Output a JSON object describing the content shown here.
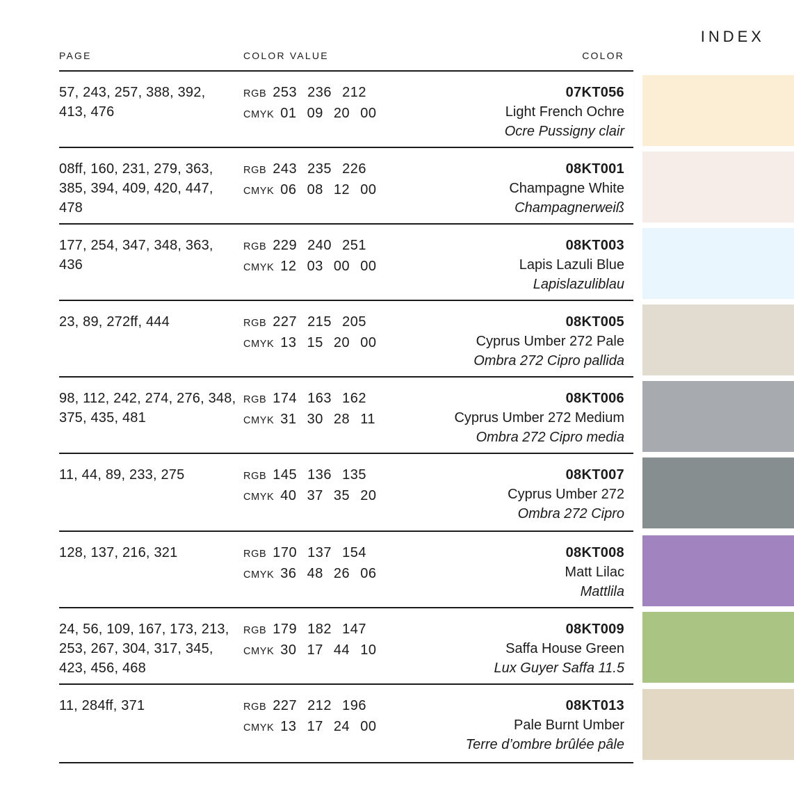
{
  "index_title": "INDEX",
  "columns": {
    "page": "PAGE",
    "value": "COLOR VALUE",
    "color": "COLOR"
  },
  "text_color": "#1b1b1b",
  "rule_color": "#1b1b1b",
  "rows": [
    {
      "pages": "57, 243, 257, 388, 392, 413, 476",
      "rgb_label": "RGB",
      "rgb": "253 236 212",
      "cmyk_label": "CMYK",
      "cmyk": "01 09 20 00",
      "code": "07KT056",
      "name": "Light French Ochre",
      "localized_name": "Ocre Pussigny clair",
      "swatch_color": "#FBEED4"
    },
    {
      "pages": "08ff, 160, 231, 279, 363, 385, 394, 409, 420, 447, 478",
      "rgb_label": "RGB",
      "rgb": "243 235 226",
      "cmyk_label": "CMYK",
      "cmyk": "06 08 12 00",
      "code": "08KT001",
      "name": "Champagne White",
      "localized_name": "Champagnerweiß",
      "swatch_color": "#F6EDE8"
    },
    {
      "pages": "177, 254, 347, 348, 363, 436",
      "rgb_label": "RGB",
      "rgb": "229 240 251",
      "cmyk_label": "CMYK",
      "cmyk": "12 03 00 00",
      "code": "08KT003",
      "name": "Lapis Lazuli Blue",
      "localized_name": "Lapislazuliblau",
      "swatch_color": "#E9F6FE"
    },
    {
      "pages": "23, 89, 272ff, 444",
      "rgb_label": "RGB",
      "rgb": "227 215 205",
      "cmyk_label": "CMYK",
      "cmyk": "13 15 20 00",
      "code": "08KT005",
      "name": "Cyprus Umber 272 Pale",
      "localized_name": "Ombra 272 Cipro pallida",
      "swatch_color": "#E2DCD0"
    },
    {
      "pages": "98, 112, 242, 274, 276, 348, 375, 435, 481",
      "rgb_label": "RGB",
      "rgb": "174 163 162",
      "cmyk_label": "CMYK",
      "cmyk": "31 30 28 11",
      "code": "08KT006",
      "name": "Cyprus Umber 272 Medium",
      "localized_name": "Ombra 272 Cipro media",
      "swatch_color": "#A7AAAF"
    },
    {
      "pages": "11, 44, 89, 233, 275",
      "rgb_label": "RGB",
      "rgb": "145 136 135",
      "cmyk_label": "CMYK",
      "cmyk": "40 37 35 20",
      "code": "08KT007",
      "name": "Cyprus Umber 272",
      "localized_name": "Ombra 272 Cipro",
      "swatch_color": "#868E90"
    },
    {
      "pages": "128, 137, 216, 321",
      "rgb_label": "RGB",
      "rgb": "170 137 154",
      "cmyk_label": "CMYK",
      "cmyk": "36 48 26 06",
      "code": "08KT008",
      "name": "Matt Lilac",
      "localized_name": "Mattlila",
      "swatch_color": "#A183BF"
    },
    {
      "pages": "24, 56, 109, 167, 173, 213, 253, 267, 304, 317, 345, 423, 456, 468",
      "rgb_label": "RGB",
      "rgb": "179 182 147",
      "cmyk_label": "CMYK",
      "cmyk": "30 17 44 10",
      "code": "08KT009",
      "name": "Saffa House Green",
      "localized_name": "Lux Guyer Saffa 11.5",
      "swatch_color": "#A9C483"
    },
    {
      "pages": "11, 284ff, 371",
      "rgb_label": "RGB",
      "rgb": "227 212 196",
      "cmyk_label": "CMYK",
      "cmyk": "13 17 24 00",
      "code": "08KT013",
      "name": "Pale Burnt Umber",
      "localized_name": "Terre d’ombre brûlée pâle",
      "swatch_color": "#E2D8C3"
    }
  ]
}
